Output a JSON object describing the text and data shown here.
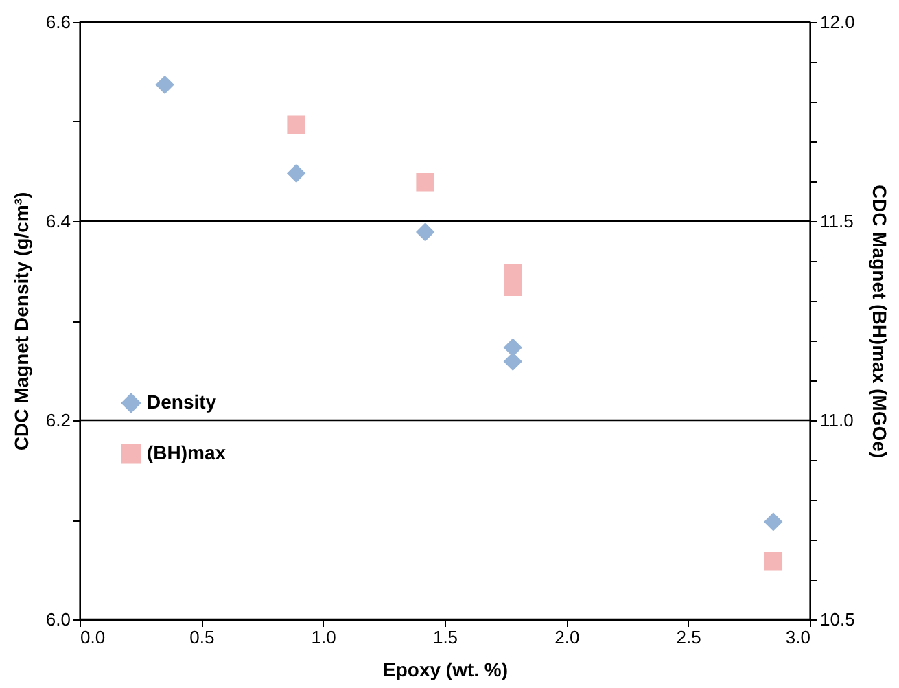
{
  "chart_data": {
    "type": "scatter",
    "xlabel": "Epoxy (wt. %)",
    "ylabel": "CDC Magnet Density  (g/cm³)",
    "y2label": "CDC Magnet  (BH)max  (MGOe)",
    "xlim": [
      0,
      3
    ],
    "xticks": [
      {
        "value": 0,
        "label": "0.0"
      },
      {
        "value": 0.5,
        "label": "0.5"
      },
      {
        "value": 1,
        "label": "1.0"
      },
      {
        "value": 1.5,
        "label": "1.5"
      },
      {
        "value": 2,
        "label": "2.0"
      },
      {
        "value": 2.5,
        "label": "2.5"
      },
      {
        "value": 3,
        "label": "3.0"
      }
    ],
    "ylim": [
      6.0,
      6.6
    ],
    "yticks": [
      {
        "value": 6.0,
        "label": "6.0"
      },
      {
        "value": 6.1,
        "label": null
      },
      {
        "value": 6.2,
        "label": "6.2"
      },
      {
        "value": 6.3,
        "label": null
      },
      {
        "value": 6.4,
        "label": "6.4"
      },
      {
        "value": 6.5,
        "label": null
      },
      {
        "value": 6.6,
        "label": "6.6"
      }
    ],
    "y2lim": [
      10.5,
      12.0
    ],
    "y2ticks": [
      {
        "value": 10.5,
        "label": "10.5"
      },
      {
        "value": 10.6,
        "label": null
      },
      {
        "value": 10.7,
        "label": null
      },
      {
        "value": 10.8,
        "label": null
      },
      {
        "value": 10.9,
        "label": null
      },
      {
        "value": 11.0,
        "label": "11.0"
      },
      {
        "value": 11.1,
        "label": null
      },
      {
        "value": 11.2,
        "label": null
      },
      {
        "value": 11.3,
        "label": null
      },
      {
        "value": 11.4,
        "label": null
      },
      {
        "value": 11.5,
        "label": "11.5"
      },
      {
        "value": 11.6,
        "label": null
      },
      {
        "value": 11.7,
        "label": null
      },
      {
        "value": 11.8,
        "label": null
      },
      {
        "value": 11.9,
        "label": null
      },
      {
        "value": 12.0,
        "label": "12.0"
      }
    ],
    "grid": "y",
    "legend": "left",
    "series": [
      {
        "name": "Density",
        "color": "#95b3d7",
        "marker": "diamond",
        "x": [
          0.35,
          0.89,
          1.42,
          1.78,
          1.78,
          2.85
        ],
        "values": [
          6.537,
          6.448,
          6.389,
          6.273,
          6.259,
          6.098
        ]
      },
      {
        "name": "(BH)max",
        "color": "#f4b6b6",
        "marker": "square",
        "axis": "y2",
        "x": [
          0.89,
          1.42,
          1.78,
          1.78,
          2.85
        ],
        "values": [
          11.742,
          11.598,
          11.369,
          11.335,
          10.646
        ]
      }
    ]
  }
}
